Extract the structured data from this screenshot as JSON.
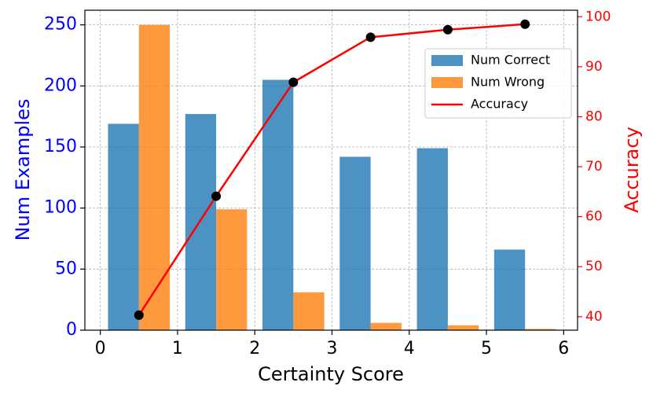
{
  "chart_data": {
    "type": "bar",
    "x": [
      0.5,
      1.5,
      2.5,
      3.5,
      4.5,
      5.5
    ],
    "series": [
      {
        "name": "Num Correct",
        "type": "bar",
        "color": "#1f77b4",
        "values": [
          169,
          177,
          205,
          142,
          149,
          66
        ]
      },
      {
        "name": "Num Wrong",
        "type": "bar",
        "color": "#ff7f0e",
        "values": [
          250,
          99,
          31,
          6,
          4,
          1
        ]
      },
      {
        "name": "Accuracy",
        "type": "line",
        "color": "#ff0000",
        "axis": "y2",
        "values": [
          40.3,
          64.1,
          86.9,
          95.9,
          97.4,
          98.5
        ]
      }
    ],
    "xlabel": "Certainty Score",
    "ylabel": "Num Examples",
    "y2label": "Accuracy",
    "xlim": [
      -0.2,
      6.18
    ],
    "xticks": [
      0,
      1,
      2,
      3,
      4,
      5,
      6
    ],
    "ylim": [
      0,
      262
    ],
    "yticks": [
      0,
      50,
      100,
      150,
      200,
      250
    ],
    "y2lim": [
      37.3,
      101.3
    ],
    "y2ticks": [
      40,
      50,
      60,
      70,
      80,
      90,
      100
    ],
    "grid": true,
    "legend": "upper right"
  }
}
